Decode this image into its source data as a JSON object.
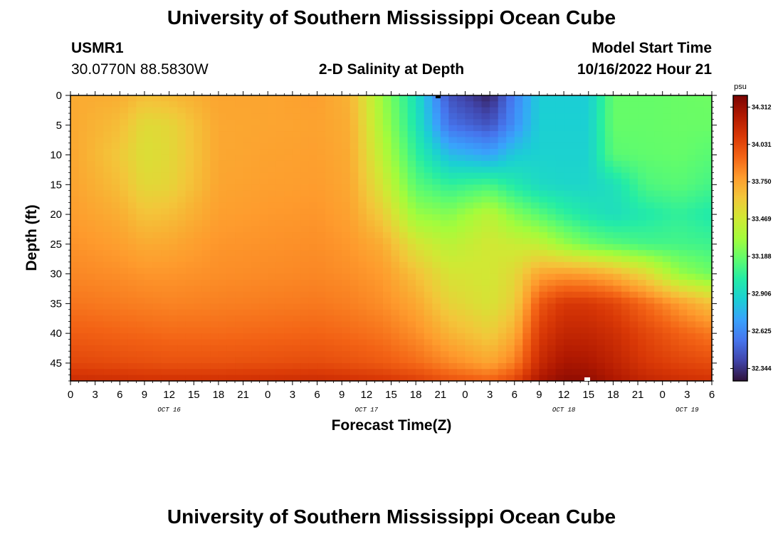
{
  "header": {
    "title": "University of Southern Mississippi Ocean Cube",
    "station_id": "USMR1",
    "station_coords": "30.0770N  88.5830W",
    "plot_subtitle": "2-D Salinity at Depth",
    "model_label": "Model Start Time",
    "model_time": "10/16/2022 Hour 21"
  },
  "footer": {
    "title_repeat": "University of Southern Mississippi Ocean Cube"
  },
  "chart_data": {
    "type": "heatmap",
    "title": "2-D Salinity at Depth",
    "xlabel": "Forecast Time(Z)",
    "ylabel": "Depth (ft)",
    "x_ticks": [
      "0",
      "3",
      "6",
      "9",
      "12",
      "15",
      "18",
      "21",
      "0",
      "3",
      "6",
      "9",
      "12",
      "15",
      "18",
      "21",
      "0",
      "3",
      "6",
      "9",
      "12",
      "15",
      "18",
      "21",
      "0",
      "3",
      "6"
    ],
    "day_labels": [
      {
        "label": "OCT 16",
        "hour": 12
      },
      {
        "label": "OCT 17",
        "hour": 36
      },
      {
        "label": "OCT 18",
        "hour": 60
      },
      {
        "label": "OCT 19",
        "hour": 75
      }
    ],
    "xlim_hours": [
      0,
      78
    ],
    "y_ticks": [
      0,
      5,
      10,
      15,
      20,
      25,
      30,
      35,
      40,
      45
    ],
    "ylim_ft": [
      0,
      48
    ],
    "colorbar": {
      "unit": "psu",
      "ticks": [
        "34.312",
        "34.031",
        "33.750",
        "33.469",
        "33.188",
        "32.906",
        "32.625",
        "32.344"
      ],
      "range": [
        32.25,
        34.4
      ]
    },
    "colormap": [
      "#30123b",
      "#4145ab",
      "#4675ed",
      "#39a2fc",
      "#1bcfd4",
      "#24eca6",
      "#61fc6c",
      "#a4fc3b",
      "#d1e834",
      "#f3c63a",
      "#fe9b2d",
      "#f36315",
      "#d93806",
      "#b11901",
      "#7a0403"
    ],
    "sample_times_h": [
      0,
      6,
      9,
      12,
      18,
      24,
      30,
      34,
      38,
      42,
      46,
      51,
      54,
      57,
      60,
      63,
      66,
      70,
      74,
      78
    ],
    "sample_depths_ft": [
      0,
      5,
      10,
      15,
      20,
      25,
      30,
      35,
      40,
      45,
      48
    ],
    "values": [
      [
        33.73,
        33.72,
        33.66,
        33.68,
        33.75,
        33.75,
        33.77,
        33.7,
        33.3,
        32.95,
        32.45,
        32.3,
        32.6,
        32.86,
        32.86,
        32.86,
        33.18,
        33.18,
        33.19,
        33.2
      ],
      [
        33.74,
        33.66,
        33.54,
        33.56,
        33.74,
        33.75,
        33.76,
        33.72,
        33.34,
        32.98,
        32.55,
        32.45,
        32.65,
        32.87,
        32.87,
        32.87,
        33.18,
        33.18,
        33.19,
        33.19
      ],
      [
        33.75,
        33.62,
        33.52,
        33.55,
        33.74,
        33.76,
        33.77,
        33.73,
        33.4,
        33.05,
        32.8,
        32.72,
        32.85,
        32.88,
        32.88,
        32.88,
        33.15,
        33.17,
        33.18,
        33.15
      ],
      [
        33.76,
        33.66,
        33.55,
        33.57,
        33.75,
        33.77,
        33.78,
        33.74,
        33.48,
        33.15,
        33.05,
        33.1,
        33.0,
        32.92,
        32.9,
        32.9,
        32.95,
        33.12,
        33.15,
        33.1
      ],
      [
        33.78,
        33.72,
        33.64,
        33.66,
        33.77,
        33.79,
        33.8,
        33.76,
        33.6,
        33.3,
        33.25,
        33.4,
        33.25,
        33.15,
        33.05,
        32.98,
        32.94,
        33.0,
        33.05,
        33.0
      ],
      [
        33.81,
        33.77,
        33.73,
        33.74,
        33.8,
        33.81,
        33.82,
        33.79,
        33.72,
        33.5,
        33.4,
        33.48,
        33.45,
        33.42,
        33.3,
        33.2,
        33.15,
        33.1,
        33.1,
        33.08
      ],
      [
        33.84,
        33.82,
        33.8,
        33.8,
        33.82,
        33.83,
        33.84,
        33.82,
        33.78,
        33.65,
        33.5,
        33.48,
        33.55,
        33.75,
        33.78,
        33.76,
        33.7,
        33.55,
        33.3,
        33.2
      ],
      [
        33.89,
        33.87,
        33.86,
        33.85,
        33.86,
        33.87,
        33.88,
        33.86,
        33.82,
        33.74,
        33.58,
        33.5,
        33.6,
        33.98,
        34.1,
        34.1,
        34.05,
        33.92,
        33.78,
        33.65
      ],
      [
        33.96,
        33.94,
        33.93,
        33.92,
        33.92,
        33.93,
        33.94,
        33.92,
        33.89,
        33.82,
        33.7,
        33.6,
        33.72,
        34.08,
        34.18,
        34.18,
        34.14,
        34.04,
        33.95,
        33.88
      ],
      [
        34.04,
        34.02,
        34.01,
        34.0,
        34.0,
        34.01,
        34.02,
        34.0,
        33.97,
        33.92,
        33.84,
        33.75,
        33.86,
        34.16,
        34.27,
        34.26,
        34.2,
        34.1,
        34.05,
        34.02
      ],
      [
        34.15,
        34.14,
        34.13,
        34.13,
        34.13,
        34.14,
        34.15,
        34.13,
        34.11,
        34.07,
        34.0,
        33.95,
        34.04,
        34.26,
        34.34,
        34.33,
        34.26,
        34.18,
        34.14,
        34.12
      ]
    ]
  }
}
